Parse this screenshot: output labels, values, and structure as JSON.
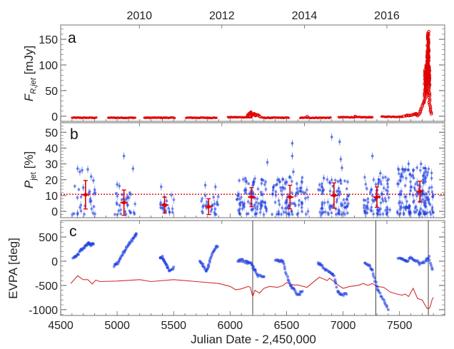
{
  "chart_data": [
    {
      "panel": "a",
      "type": "scatter",
      "ylabel": "F_R,jet [mJy]",
      "ylabel_main": "F",
      "ylabel_sub": "R,jet",
      "ylabel_unit": " [mJy]",
      "ylim": [
        -10,
        178
      ],
      "yticks": [
        0,
        50,
        100,
        150
      ],
      "ytick_labels": [
        "0",
        "50",
        "100",
        "150"
      ],
      "color": "#e00000",
      "segments": [
        {
          "x0": 4600,
          "x1": 4820,
          "y": -3
        },
        {
          "x0": 4920,
          "x1": 5160,
          "y": -3
        },
        {
          "x0": 5240,
          "x1": 5510,
          "y": -3
        },
        {
          "x0": 5610,
          "x1": 5880,
          "y": -3
        },
        {
          "x0": 5980,
          "x1": 6190,
          "y": -2
        },
        {
          "x0": 6280,
          "x1": 6520,
          "y": -3
        },
        {
          "x0": 6620,
          "x1": 6890,
          "y": -3
        },
        {
          "x0": 6960,
          "x1": 7260,
          "y": -2
        },
        {
          "x0": 7340,
          "x1": 7530,
          "y": -1
        }
      ],
      "flare": [
        [
          6150,
          -1
        ],
        [
          6170,
          4
        ],
        [
          6180,
          8
        ],
        [
          6190,
          3
        ],
        [
          6200,
          2
        ],
        [
          6215,
          5
        ],
        [
          6230,
          1
        ],
        [
          6245,
          3
        ],
        [
          6260,
          -1
        ],
        [
          7540,
          0
        ],
        [
          7570,
          2
        ],
        [
          7590,
          1
        ],
        [
          7620,
          3
        ],
        [
          7645,
          5
        ],
        [
          7660,
          1
        ],
        [
          7680,
          8
        ],
        [
          7695,
          15
        ],
        [
          7710,
          25
        ],
        [
          7720,
          30
        ],
        [
          7725,
          60
        ],
        [
          7730,
          90
        ],
        [
          7735,
          40
        ],
        [
          7740,
          100
        ],
        [
          7745,
          70
        ],
        [
          7748,
          130
        ],
        [
          7750,
          80
        ],
        [
          7752,
          150
        ],
        [
          7754,
          165
        ],
        [
          7756,
          120
        ],
        [
          7758,
          60
        ],
        [
          7760,
          95
        ],
        [
          7762,
          40
        ],
        [
          7765,
          30
        ],
        [
          7770,
          20
        ],
        [
          7778,
          10
        ],
        [
          7785,
          2
        ]
      ]
    },
    {
      "panel": "b",
      "type": "scatter",
      "ylabel": "P_jet [%]",
      "ylabel_main": "P",
      "ylabel_sub": "jet",
      "ylabel_unit": " [%]",
      "ylim": [
        -4,
        56
      ],
      "yticks": [
        0,
        10,
        20,
        30,
        40,
        50
      ],
      "ytick_labels": [
        "0",
        "10",
        "20",
        "30",
        "40",
        "50"
      ],
      "reference_line": 10.8,
      "point_color": "#2040e0",
      "mean_color": "#e00000",
      "means": [
        {
          "x": 4720,
          "y": 10.5,
          "err": 9
        },
        {
          "x": 5060,
          "y": 5.5,
          "err": 8
        },
        {
          "x": 5420,
          "y": 4,
          "err": 5
        },
        {
          "x": 5810,
          "y": 3,
          "err": 5
        },
        {
          "x": 6190,
          "y": 9,
          "err": 6
        },
        {
          "x": 6530,
          "y": 9,
          "err": 7.5
        },
        {
          "x": 6920,
          "y": 10,
          "err": 8
        },
        {
          "x": 7300,
          "y": 9,
          "err": 6.5
        },
        {
          "x": 7680,
          "y": 12.5,
          "err": 6.5
        }
      ],
      "outliers": [
        [
          4650,
          27
        ],
        [
          4670,
          25
        ],
        [
          4690,
          26
        ],
        [
          4740,
          26.5
        ],
        [
          4770,
          22
        ],
        [
          4790,
          19.5
        ],
        [
          4700,
          15
        ],
        [
          5060,
          35
        ],
        [
          5140,
          27
        ],
        [
          5000,
          17
        ],
        [
          5020,
          16
        ],
        [
          5390,
          15.5
        ],
        [
          5780,
          16.5
        ],
        [
          5870,
          15.5
        ],
        [
          6330,
          31
        ],
        [
          6550,
          43
        ],
        [
          6550,
          35
        ],
        [
          6560,
          25
        ],
        [
          6830,
          21
        ],
        [
          6900,
          47
        ],
        [
          6970,
          44
        ],
        [
          6980,
          33
        ],
        [
          6990,
          27.5
        ],
        [
          7260,
          35
        ],
        [
          7330,
          24
        ],
        [
          7580,
          30
        ],
        [
          7690,
          30
        ]
      ],
      "clusters": [
        {
          "x0": 4600,
          "x1": 4820,
          "ymin": -2,
          "ymax": 18,
          "n": 25
        },
        {
          "x0": 4980,
          "x1": 5170,
          "ymin": -2,
          "ymax": 14,
          "n": 30
        },
        {
          "x0": 5380,
          "x1": 5510,
          "ymin": -2,
          "ymax": 11,
          "n": 20
        },
        {
          "x0": 5740,
          "x1": 5900,
          "ymin": -2,
          "ymax": 10,
          "n": 25
        },
        {
          "x0": 6060,
          "x1": 6330,
          "ymin": -2,
          "ymax": 22,
          "n": 90
        },
        {
          "x0": 6370,
          "x1": 6690,
          "ymin": -2,
          "ymax": 22,
          "n": 90
        },
        {
          "x0": 6780,
          "x1": 7050,
          "ymin": -2,
          "ymax": 21,
          "n": 80
        },
        {
          "x0": 7180,
          "x1": 7420,
          "ymin": -2,
          "ymax": 22,
          "n": 80
        },
        {
          "x0": 7480,
          "x1": 7800,
          "ymin": -2,
          "ymax": 28,
          "n": 160
        }
      ]
    },
    {
      "panel": "c",
      "type": "scatter+line",
      "ylabel": "EVPA [deg]",
      "ylim": [
        -1120,
        840
      ],
      "yticks": [
        -1000,
        -500,
        0,
        500
      ],
      "ytick_labels": [
        "-1000",
        "-500",
        "0",
        "500"
      ],
      "xlabel": "Julian Date - 2,450,000",
      "xlim": [
        4500,
        7900
      ],
      "xticks": [
        4500,
        5000,
        5500,
        6000,
        6500,
        7000,
        7500
      ],
      "xtick_labels": [
        "4500",
        "5000",
        "5500",
        "6000",
        "6500",
        "7000",
        "7500"
      ],
      "top_year_ticks": [
        {
          "x": 5197,
          "label": "2010"
        },
        {
          "x": 5927,
          "label": "2012"
        },
        {
          "x": 6658,
          "label": "2014"
        },
        {
          "x": 7388,
          "label": "2016"
        }
      ],
      "vertical_lines": [
        6200,
        7290,
        7755
      ],
      "point_color": "#2040e0",
      "line_color": "#d03030",
      "evpa_tracks": [
        [
          [
            4610,
            50
          ],
          [
            4640,
            100
          ],
          [
            4670,
            200
          ],
          [
            4700,
            260
          ],
          [
            4730,
            320
          ],
          [
            4750,
            380
          ],
          [
            4770,
            340
          ],
          [
            4790,
            350
          ]
        ],
        [
          [
            4970,
            -90
          ],
          [
            5000,
            -50
          ],
          [
            5030,
            50
          ],
          [
            5060,
            200
          ],
          [
            5090,
            300
          ],
          [
            5120,
            400
          ],
          [
            5150,
            500
          ],
          [
            5170,
            560
          ]
        ],
        [
          [
            5380,
            60
          ],
          [
            5400,
            80
          ],
          [
            5420,
            0
          ],
          [
            5440,
            -100
          ],
          [
            5460,
            -200
          ],
          [
            5500,
            -120
          ]
        ],
        [
          [
            5730,
            -20
          ],
          [
            5760,
            -80
          ],
          [
            5790,
            -230
          ],
          [
            5810,
            -100
          ],
          [
            5830,
            100
          ],
          [
            5860,
            250
          ],
          [
            5890,
            300
          ]
        ],
        [
          [
            6070,
            20
          ],
          [
            6100,
            20
          ],
          [
            6140,
            -20
          ],
          [
            6170,
            -30
          ],
          [
            6200,
            -100
          ],
          [
            6220,
            -200
          ],
          [
            6250,
            -300
          ],
          [
            6300,
            -320
          ]
        ],
        [
          [
            6400,
            30
          ],
          [
            6440,
            10
          ],
          [
            6470,
            -20
          ],
          [
            6500,
            -280
          ],
          [
            6530,
            -500
          ],
          [
            6560,
            -560
          ],
          [
            6600,
            -700
          ],
          [
            6640,
            -620
          ]
        ],
        [
          [
            6780,
            -20
          ],
          [
            6810,
            -100
          ],
          [
            6850,
            -180
          ],
          [
            6890,
            -220
          ],
          [
            6920,
            -300
          ],
          [
            6950,
            -600
          ],
          [
            6980,
            -700
          ],
          [
            7030,
            -680
          ]
        ],
        [
          [
            7190,
            -30
          ],
          [
            7230,
            -80
          ],
          [
            7260,
            -200
          ],
          [
            7290,
            -450
          ],
          [
            7320,
            -650
          ],
          [
            7360,
            -800
          ],
          [
            7400,
            -1000
          ]
        ],
        [
          [
            7490,
            70
          ],
          [
            7530,
            40
          ],
          [
            7560,
            -20
          ],
          [
            7600,
            70
          ],
          [
            7640,
            20
          ],
          [
            7680,
            -50
          ],
          [
            7730,
            0
          ],
          [
            7760,
            80
          ],
          [
            7790,
            -170
          ]
        ]
      ],
      "red_line": [
        [
          4590,
          -460
        ],
        [
          4650,
          -300
        ],
        [
          4700,
          -380
        ],
        [
          4740,
          -380
        ],
        [
          4780,
          -470
        ],
        [
          4810,
          -390
        ],
        [
          4850,
          -420
        ],
        [
          5000,
          -410
        ],
        [
          5200,
          -380
        ],
        [
          5300,
          -420
        ],
        [
          5500,
          -380
        ],
        [
          5700,
          -420
        ],
        [
          5900,
          -460
        ],
        [
          6000,
          -520
        ],
        [
          6050,
          -590
        ],
        [
          6100,
          -570
        ],
        [
          6160,
          -520
        ],
        [
          6180,
          -540
        ],
        [
          6200,
          -730
        ],
        [
          6220,
          -600
        ],
        [
          6260,
          -660
        ],
        [
          6300,
          -560
        ],
        [
          6350,
          -520
        ],
        [
          6420,
          -540
        ],
        [
          6470,
          -500
        ],
        [
          6500,
          -440
        ],
        [
          6560,
          -490
        ],
        [
          6600,
          -490
        ],
        [
          6680,
          -540
        ],
        [
          6790,
          -330
        ],
        [
          6860,
          -400
        ],
        [
          6880,
          -350
        ],
        [
          6920,
          -420
        ],
        [
          6960,
          -500
        ],
        [
          7000,
          -560
        ],
        [
          7060,
          -520
        ],
        [
          7130,
          -500
        ],
        [
          7180,
          -460
        ],
        [
          7220,
          -500
        ],
        [
          7260,
          -460
        ],
        [
          7300,
          -520
        ],
        [
          7360,
          -540
        ],
        [
          7420,
          -640
        ],
        [
          7480,
          -680
        ],
        [
          7520,
          -700
        ],
        [
          7550,
          -680
        ],
        [
          7580,
          -730
        ],
        [
          7620,
          -560
        ],
        [
          7660,
          -770
        ],
        [
          7700,
          -800
        ],
        [
          7740,
          -960
        ],
        [
          7755,
          -990
        ],
        [
          7770,
          -950
        ],
        [
          7790,
          -780
        ],
        [
          7800,
          -750
        ]
      ]
    }
  ]
}
